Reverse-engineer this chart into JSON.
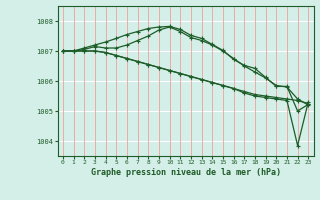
{
  "title": "Graphe pression niveau de la mer (hPa)",
  "bg_color": "#d4eee8",
  "line_color": "#1e5c28",
  "grid_color_v": "#f0a0a0",
  "grid_color_h": "#ffffff",
  "xlim": [
    -0.5,
    23.5
  ],
  "ylim": [
    1003.5,
    1008.5
  ],
  "yticks": [
    1004,
    1005,
    1006,
    1007,
    1008
  ],
  "xticks": [
    0,
    1,
    2,
    3,
    4,
    5,
    6,
    7,
    8,
    9,
    10,
    11,
    12,
    13,
    14,
    15,
    16,
    17,
    18,
    19,
    20,
    21,
    22,
    23
  ],
  "series": [
    [
      1007.0,
      1007.0,
      1007.05,
      1007.15,
      1007.1,
      1007.1,
      1007.2,
      1007.35,
      1007.5,
      1007.7,
      1007.8,
      1007.65,
      1007.45,
      1007.35,
      1007.2,
      1007.0,
      1006.75,
      1006.5,
      1006.3,
      1006.1,
      1005.85,
      1005.8,
      1005.4,
      1005.2
    ],
    [
      1007.0,
      1007.0,
      1007.0,
      1007.0,
      1006.95,
      1006.85,
      1006.75,
      1006.65,
      1006.55,
      1006.45,
      1006.35,
      1006.25,
      1006.15,
      1006.05,
      1005.95,
      1005.85,
      1005.75,
      1005.65,
      1005.55,
      1005.5,
      1005.45,
      1005.4,
      1005.35,
      1005.25
    ],
    [
      1007.0,
      1007.0,
      1007.0,
      1007.0,
      1006.95,
      1006.85,
      1006.75,
      1006.65,
      1006.55,
      1006.45,
      1006.35,
      1006.25,
      1006.15,
      1006.05,
      1005.95,
      1005.85,
      1005.75,
      1005.6,
      1005.5,
      1005.45,
      1005.4,
      1005.35,
      1003.85,
      1005.3
    ],
    [
      1007.0,
      1007.0,
      1007.1,
      1007.2,
      1007.3,
      1007.42,
      1007.55,
      1007.65,
      1007.75,
      1007.8,
      1007.82,
      1007.72,
      1007.52,
      1007.42,
      1007.22,
      1007.02,
      1006.72,
      1006.52,
      1006.42,
      1006.12,
      1005.82,
      1005.82,
      1005.0,
      1005.22
    ]
  ]
}
